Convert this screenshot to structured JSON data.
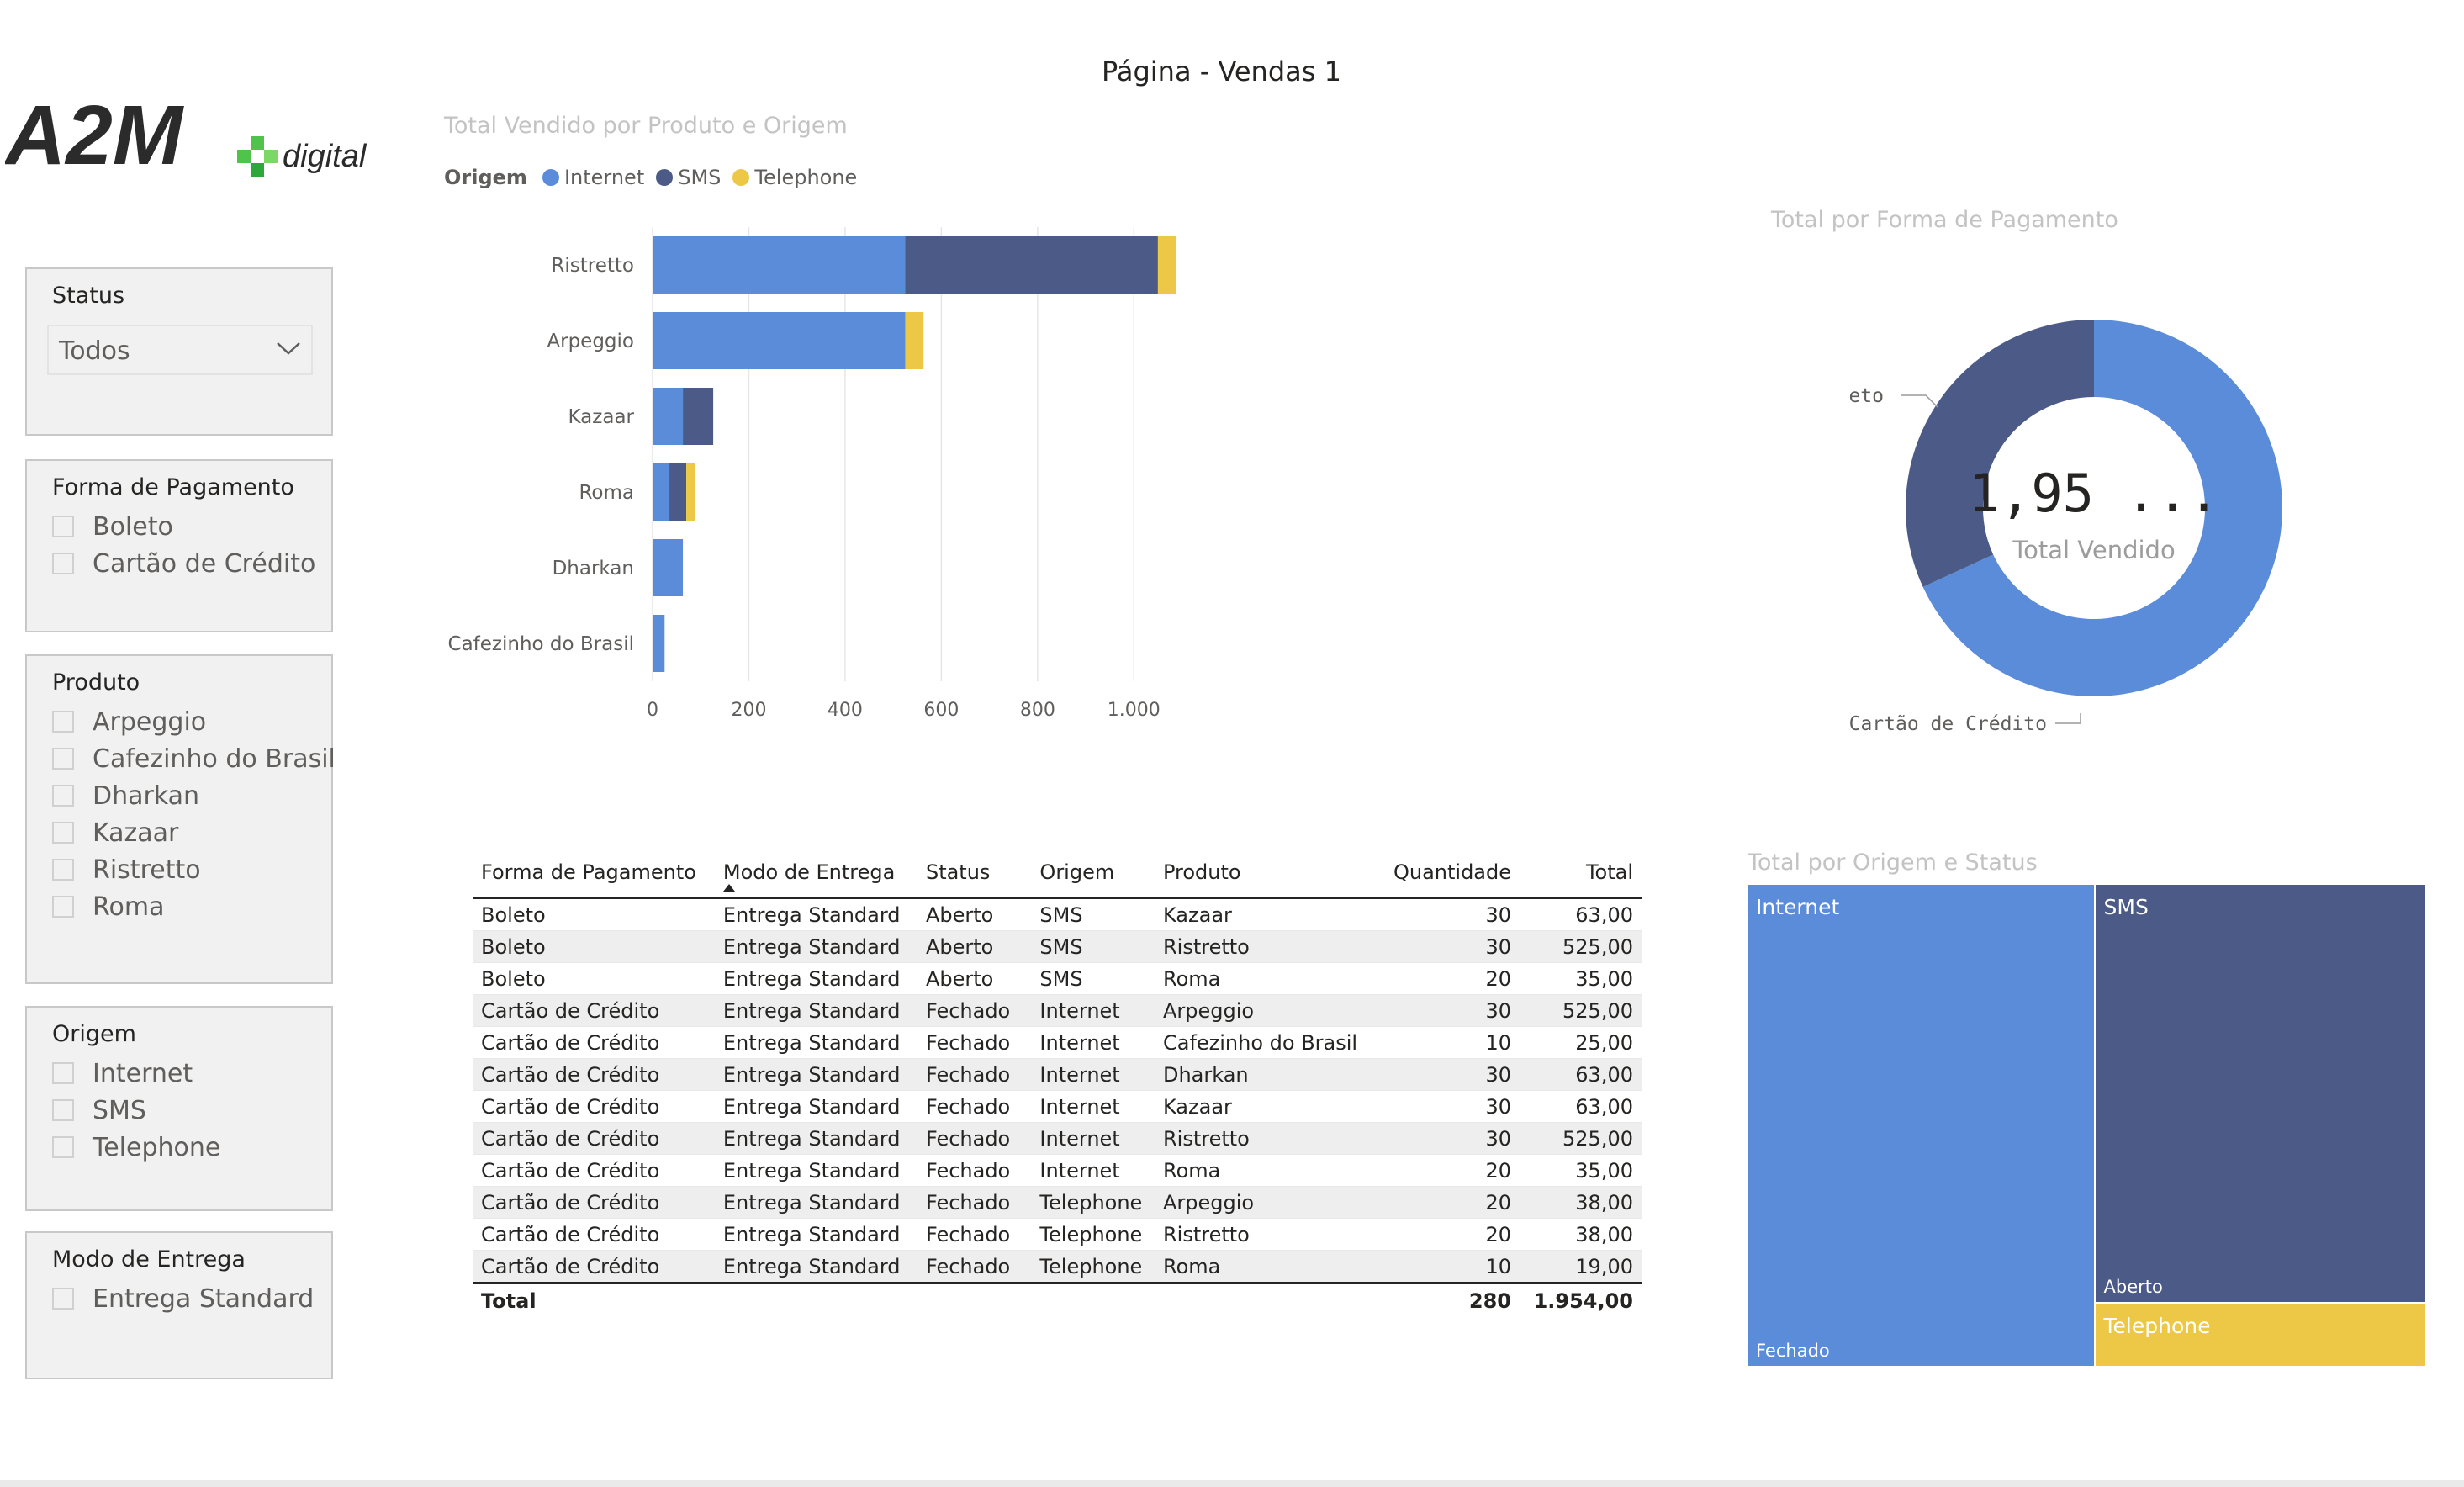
{
  "page": {
    "title": "Página - Vendas 1"
  },
  "logo": {
    "text_main": "A2M",
    "text_sub": "digital"
  },
  "colors": {
    "internet": "#5b8cd9",
    "sms": "#4b5a86",
    "telephone": "#ecc846"
  },
  "slicers": {
    "status": {
      "title": "Status",
      "value": "Todos"
    },
    "pagamento": {
      "title": "Forma de Pagamento",
      "items": [
        "Boleto",
        "Cartão de Crédito"
      ]
    },
    "produto": {
      "title": "Produto",
      "items": [
        "Arpeggio",
        "Cafezinho do Brasil",
        "Dharkan",
        "Kazaar",
        "Ristretto",
        "Roma"
      ]
    },
    "origem": {
      "title": "Origem",
      "items": [
        "Internet",
        "SMS",
        "Telephone"
      ]
    },
    "entrega": {
      "title": "Modo de Entrega",
      "items": [
        "Entrega Standard"
      ]
    }
  },
  "bar_visual": {
    "title": "Total Vendido por Produto e Origem",
    "legend_title": "Origem"
  },
  "donut_visual": {
    "title": "Total por Forma de Pagamento",
    "center_value": "1,95 ...",
    "center_label": "Total Vendido"
  },
  "treemap_visual": {
    "title": "Total por Origem e Status",
    "cells": [
      {
        "origem": "Internet",
        "status": "Fechado",
        "value": 749
      },
      {
        "origem": "SMS",
        "status": "Aberto",
        "value": 623
      },
      {
        "origem": "Telephone",
        "status": "",
        "value": 95
      }
    ]
  },
  "table": {
    "columns": [
      "Forma de Pagamento",
      "Modo de Entrega",
      "Status",
      "Origem",
      "Produto",
      "Quantidade",
      "Total"
    ],
    "rows": [
      [
        "Boleto",
        "Entrega Standard",
        "Aberto",
        "SMS",
        "Kazaar",
        "30",
        "63,00"
      ],
      [
        "Boleto",
        "Entrega Standard",
        "Aberto",
        "SMS",
        "Ristretto",
        "30",
        "525,00"
      ],
      [
        "Boleto",
        "Entrega Standard",
        "Aberto",
        "SMS",
        "Roma",
        "20",
        "35,00"
      ],
      [
        "Cartão de Crédito",
        "Entrega Standard",
        "Fechado",
        "Internet",
        "Arpeggio",
        "30",
        "525,00"
      ],
      [
        "Cartão de Crédito",
        "Entrega Standard",
        "Fechado",
        "Internet",
        "Cafezinho do Brasil",
        "10",
        "25,00"
      ],
      [
        "Cartão de Crédito",
        "Entrega Standard",
        "Fechado",
        "Internet",
        "Dharkan",
        "30",
        "63,00"
      ],
      [
        "Cartão de Crédito",
        "Entrega Standard",
        "Fechado",
        "Internet",
        "Kazaar",
        "30",
        "63,00"
      ],
      [
        "Cartão de Crédito",
        "Entrega Standard",
        "Fechado",
        "Internet",
        "Ristretto",
        "30",
        "525,00"
      ],
      [
        "Cartão de Crédito",
        "Entrega Standard",
        "Fechado",
        "Internet",
        "Roma",
        "20",
        "35,00"
      ],
      [
        "Cartão de Crédito",
        "Entrega Standard",
        "Fechado",
        "Telephone",
        "Arpeggio",
        "20",
        "38,00"
      ],
      [
        "Cartão de Crédito",
        "Entrega Standard",
        "Fechado",
        "Telephone",
        "Ristretto",
        "20",
        "38,00"
      ],
      [
        "Cartão de Crédito",
        "Entrega Standard",
        "Fechado",
        "Telephone",
        "Roma",
        "10",
        "19,00"
      ]
    ],
    "total": {
      "label": "Total",
      "quantidade": "280",
      "total": "1.954,00"
    }
  },
  "chart_data": [
    {
      "type": "bar",
      "orientation": "horizontal",
      "stacked": true,
      "title": "Total Vendido por Produto e Origem",
      "legend_title": "Origem",
      "legend_position": "top-left",
      "categories": [
        "Ristretto",
        "Arpeggio",
        "Kazaar",
        "Roma",
        "Dharkan",
        "Cafezinho do Brasil"
      ],
      "series": [
        {
          "name": "Internet",
          "color": "#5b8cd9",
          "values": [
            525,
            525,
            63,
            35,
            63,
            25
          ]
        },
        {
          "name": "SMS",
          "color": "#4b5a86",
          "values": [
            525,
            0,
            63,
            35,
            0,
            0
          ]
        },
        {
          "name": "Telephone",
          "color": "#ecc846",
          "values": [
            38,
            38,
            0,
            19,
            0,
            0
          ]
        }
      ],
      "xticks": [
        "0",
        "200",
        "400",
        "600",
        "800",
        "1.000"
      ],
      "xtick_values": [
        0,
        200,
        400,
        600,
        800,
        1000
      ],
      "xlim": [
        0,
        1100
      ],
      "grid": true
    },
    {
      "type": "pie",
      "donut": true,
      "title": "Total por Forma de Pagamento",
      "labels": [
        "Boleto",
        "Cartão de Crédito"
      ],
      "values": [
        623,
        1331
      ],
      "colors": [
        "#4b5a86",
        "#5b8cd9"
      ],
      "center_value": "1,95 ...",
      "center_label": "Total Vendido"
    }
  ]
}
